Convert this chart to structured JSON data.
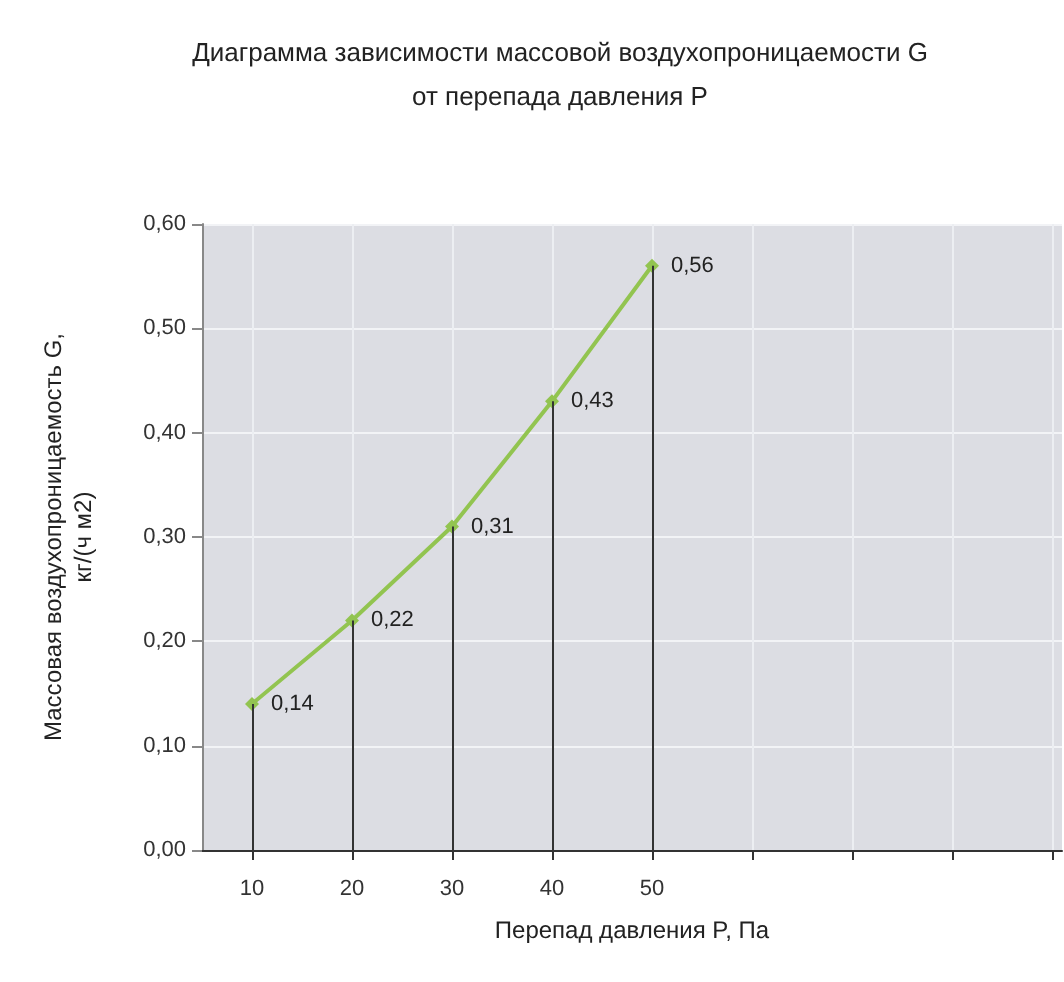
{
  "chart_data": {
    "type": "line",
    "title": "Диаграмма зависимости массовой воздухопроницаемости G\nот перепада давления P",
    "xlabel": "Перепад давления P, Па",
    "ylabel": "Массовая воздухопроницаемость G,\nкг/(ч м2)",
    "x": [
      10,
      20,
      30,
      40,
      50
    ],
    "series": [
      {
        "color": "#92c450",
        "values": [
          0.14,
          0.22,
          0.31,
          0.43,
          0.56
        ],
        "value_labels": [
          "0,14",
          "0,22",
          "0,31",
          "0,43",
          "0,56"
        ]
      }
    ],
    "xlim": [
      5,
      91
    ],
    "xticks": [
      10,
      20,
      30,
      40,
      50,
      {
        "value": 60,
        "label": null
      },
      {
        "value": 70,
        "label": null
      },
      {
        "value": 80,
        "label": null
      },
      {
        "value": 90,
        "label": null
      }
    ],
    "ylim": [
      0,
      0.6
    ],
    "yticks": [
      {
        "value": 0,
        "label": "0,00"
      },
      {
        "value": 0.1,
        "label": "0,10"
      },
      {
        "value": 0.2,
        "label": "0,20"
      },
      {
        "value": 0.3,
        "label": "0,30"
      },
      {
        "value": 0.4,
        "label": "0,40"
      },
      {
        "value": 0.5,
        "label": "0,50"
      },
      {
        "value": 0.6,
        "label": "0,60"
      }
    ],
    "grid": true,
    "marker": "diamond",
    "line_style": "solid"
  }
}
